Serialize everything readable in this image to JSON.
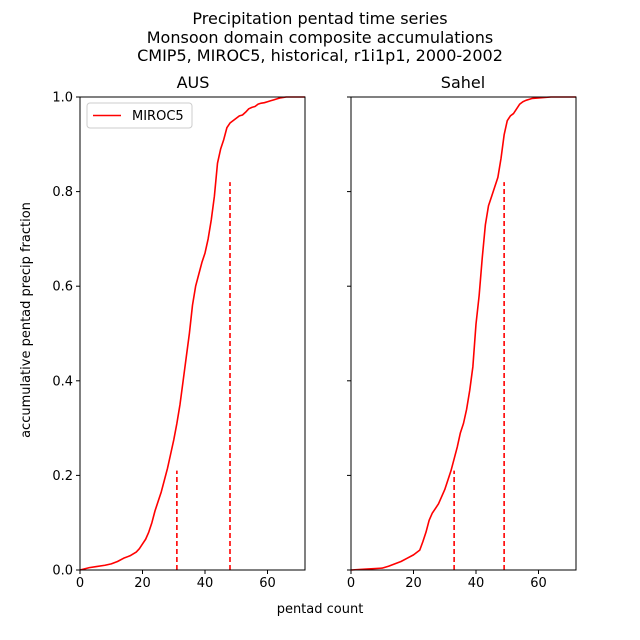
{
  "figure": {
    "title_lines": [
      "Precipitation pentad time series",
      "Monsoon domain composite accumulations",
      "CMIP5, MIROC5, historical, r1i1p1, 2000-2002"
    ],
    "xlabel": "pentad count",
    "ylabel": "accumulative pentad precip fraction"
  },
  "chart_data": [
    {
      "type": "line",
      "title": "AUS",
      "xlim": [
        0,
        72
      ],
      "ylim": [
        0,
        1
      ],
      "xticks": [
        0,
        20,
        40,
        60
      ],
      "yticks": [
        0.0,
        0.2,
        0.4,
        0.6,
        0.8,
        1.0
      ],
      "ytick_labels": [
        "0.0",
        "0.2",
        "0.4",
        "0.6",
        "0.8",
        "1.0"
      ],
      "grid": false,
      "legend": {
        "placement": "top-left",
        "entries": [
          "MIROC5"
        ]
      },
      "series": [
        {
          "name": "MIROC5",
          "color": "#ff0000",
          "x": [
            0,
            3,
            5,
            8,
            10,
            12,
            14,
            16,
            18,
            19,
            20,
            21,
            22,
            23,
            24,
            25,
            26,
            27,
            28,
            29,
            30,
            31,
            32,
            33,
            34,
            35,
            36,
            37,
            38,
            39,
            40,
            41,
            42,
            43,
            44,
            45,
            46,
            47,
            48,
            49,
            50,
            51,
            52,
            53,
            54,
            55,
            56,
            57,
            58,
            59,
            60,
            61,
            62,
            63,
            64,
            65,
            66,
            67,
            68,
            69,
            70,
            72
          ],
          "y": [
            0.0,
            0.005,
            0.007,
            0.01,
            0.013,
            0.018,
            0.025,
            0.03,
            0.038,
            0.045,
            0.055,
            0.065,
            0.08,
            0.1,
            0.125,
            0.145,
            0.165,
            0.19,
            0.215,
            0.245,
            0.275,
            0.31,
            0.35,
            0.4,
            0.45,
            0.5,
            0.56,
            0.6,
            0.625,
            0.65,
            0.67,
            0.7,
            0.74,
            0.79,
            0.86,
            0.89,
            0.91,
            0.935,
            0.945,
            0.95,
            0.955,
            0.96,
            0.962,
            0.968,
            0.975,
            0.978,
            0.98,
            0.985,
            0.987,
            0.988,
            0.99,
            0.992,
            0.994,
            0.996,
            0.998,
            0.999,
            1.0,
            1.0,
            1.0,
            1.0,
            1.0,
            1.0
          ]
        }
      ],
      "vlines": [
        {
          "x": 31,
          "y": 0.21
        },
        {
          "x": 48,
          "y": 0.82
        }
      ]
    },
    {
      "type": "line",
      "title": "Sahel",
      "xlim": [
        0,
        72
      ],
      "ylim": [
        0,
        1
      ],
      "xticks": [
        0,
        20,
        40,
        60
      ],
      "grid": false,
      "series": [
        {
          "name": "MIROC5",
          "color": "#ff0000",
          "x": [
            0,
            5,
            10,
            12,
            14,
            16,
            18,
            20,
            22,
            23,
            24,
            25,
            26,
            27,
            28,
            30,
            32,
            34,
            35,
            36,
            37,
            38,
            39,
            40,
            41,
            42,
            43,
            44,
            45,
            46,
            47,
            48,
            49,
            50,
            51,
            52,
            53,
            54,
            55,
            56,
            57,
            58,
            60,
            62,
            64,
            66,
            72
          ],
          "y": [
            0.0,
            0.002,
            0.004,
            0.008,
            0.013,
            0.018,
            0.025,
            0.032,
            0.042,
            0.06,
            0.08,
            0.105,
            0.12,
            0.13,
            0.14,
            0.17,
            0.21,
            0.26,
            0.29,
            0.31,
            0.34,
            0.38,
            0.43,
            0.52,
            0.58,
            0.66,
            0.73,
            0.77,
            0.79,
            0.81,
            0.83,
            0.87,
            0.92,
            0.95,
            0.96,
            0.965,
            0.975,
            0.985,
            0.99,
            0.993,
            0.995,
            0.997,
            0.998,
            0.999,
            1.0,
            1.0,
            1.0
          ]
        }
      ],
      "vlines": [
        {
          "x": 33,
          "y": 0.21
        },
        {
          "x": 49,
          "y": 0.82
        }
      ]
    }
  ]
}
